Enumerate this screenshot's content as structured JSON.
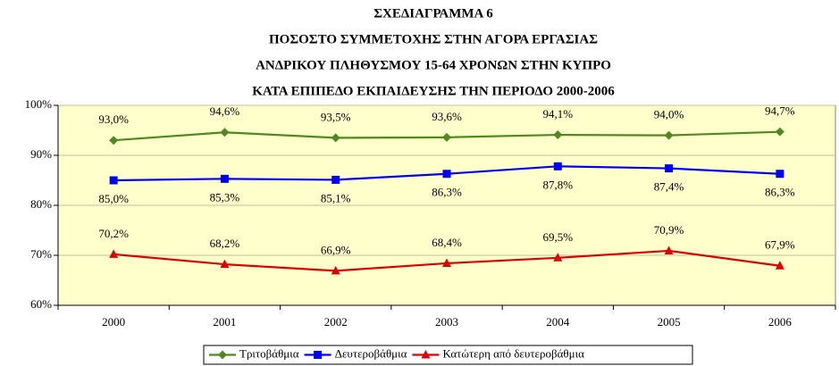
{
  "chart_data": {
    "type": "line",
    "title": [
      "ΣΧΕΔΙΑΓΡΑΜΜΑ 6",
      "ΠΟΣΟΣΤΟ ΣΥΜΜΕΤΟΧΗΣ ΣΤΗΝ ΑΓΟΡΑ ΕΡΓΑΣΙΑΣ",
      "ΑΝΔΡΙΚΟΥ ΠΛΗΘΥΣΜΟΥ 15-64 ΧΡΟΝΩΝ ΣΤΗΝ ΚΥΠΡΟ",
      "ΚΑΤΑ ΕΠΙΠΕΔΟ ΕΚΠΑΙΔΕΥΣΗΣ ΤΗΝ ΠΕΡΙΟΔΟ 2000-2006"
    ],
    "categories": [
      "2000",
      "2001",
      "2002",
      "2003",
      "2004",
      "2005",
      "2006"
    ],
    "series": [
      {
        "name": "Τριτοβάθμια",
        "color": "#4f8a1f",
        "marker": "diamond",
        "label_position": "above",
        "values": [
          93.0,
          94.6,
          93.5,
          93.6,
          94.1,
          94.0,
          94.7
        ],
        "value_labels": [
          "93,0%",
          "94,6%",
          "93,5%",
          "93,6%",
          "94,1%",
          "94,0%",
          "94,7%"
        ]
      },
      {
        "name": "Δευτεροβάθμια",
        "color": "#0000ff",
        "marker": "square",
        "label_position": "below",
        "values": [
          85.0,
          85.3,
          85.1,
          86.3,
          87.8,
          87.4,
          86.3
        ],
        "value_labels": [
          "85,0%",
          "85,3%",
          "85,1%",
          "86,3%",
          "87,8%",
          "87,4%",
          "86,3%"
        ]
      },
      {
        "name": "Κατώτερη από δευτεροβάθμια",
        "color": "#e00000",
        "marker": "triangle",
        "label_position": "above",
        "values": [
          70.2,
          68.2,
          66.9,
          68.4,
          69.5,
          70.9,
          67.9
        ],
        "value_labels": [
          "70,2%",
          "68,2%",
          "66,9%",
          "68,4%",
          "69,5%",
          "70,9%",
          "67,9%"
        ]
      }
    ],
    "ylim": [
      60,
      100
    ],
    "yticks": [
      {
        "value": 60,
        "label": "60%"
      },
      {
        "value": 70,
        "label": "70%"
      },
      {
        "value": 80,
        "label": "80%"
      },
      {
        "value": 90,
        "label": "90%"
      },
      {
        "value": 100,
        "label": "100%"
      }
    ],
    "legend": "bottom",
    "plot_background": "#ffffcc"
  }
}
